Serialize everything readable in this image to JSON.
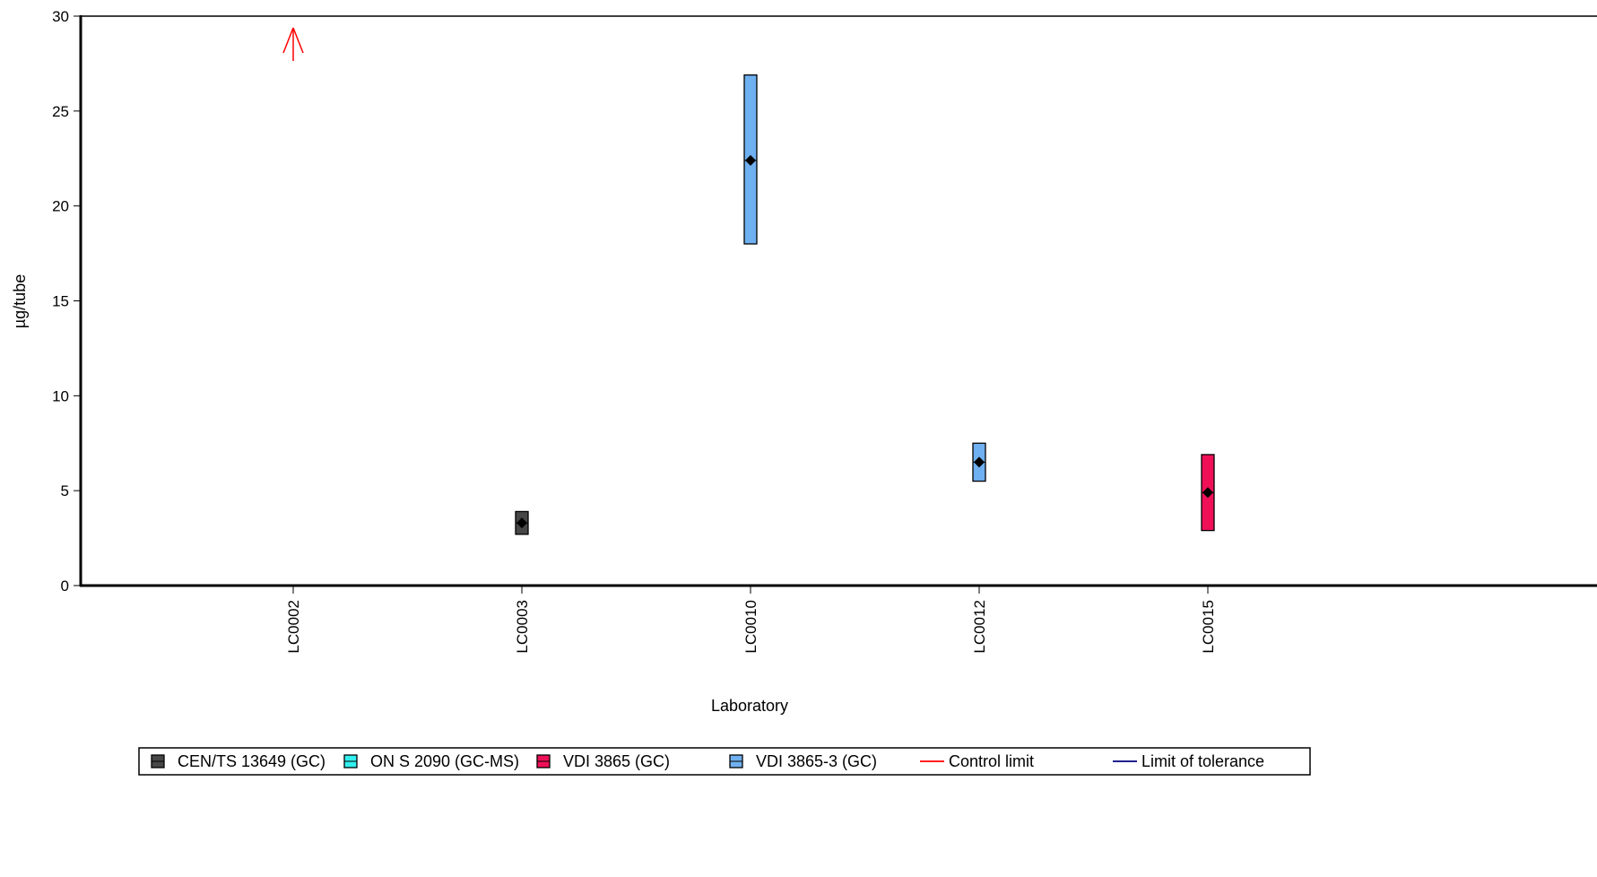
{
  "chart_data": {
    "type": "box",
    "xlabel": "Laboratory",
    "ylabel": "µg/tube",
    "ylim": [
      0,
      30
    ],
    "yticks": [
      0,
      5,
      10,
      15,
      20,
      25,
      30
    ],
    "grid": false,
    "categories": [
      "LC0002",
      "LC0003",
      "LC0010",
      "LC0012",
      "LC0015"
    ],
    "points": [
      {
        "lab": "LC0002",
        "method": "off-scale",
        "mean": null,
        "low": null,
        "high": null,
        "exceeds_axis": true
      },
      {
        "lab": "LC0003",
        "method": "CEN/TS 13649 (GC)",
        "mean": 3.3,
        "low": 2.7,
        "high": 3.9
      },
      {
        "lab": "LC0010",
        "method": "VDI 3865-3 (GC)",
        "mean": 22.4,
        "low": 18.0,
        "high": 26.9
      },
      {
        "lab": "LC0012",
        "method": "VDI 3865-3 (GC)",
        "mean": 6.5,
        "low": 5.5,
        "high": 7.5
      },
      {
        "lab": "LC0015",
        "method": "VDI 3865 (GC)",
        "mean": 4.9,
        "low": 2.9,
        "high": 6.9
      }
    ],
    "legend": {
      "position": "bottom",
      "items": [
        {
          "label": "CEN/TS 13649 (GC)",
          "kind": "box",
          "color": "#474747"
        },
        {
          "label": "ON S 2090 (GC-MS)",
          "kind": "box",
          "color": "#33f0f0"
        },
        {
          "label": "VDI 3865 (GC)",
          "kind": "box",
          "color": "#f01058"
        },
        {
          "label": "VDI 3865-3 (GC)",
          "kind": "box",
          "color": "#6fb0f0"
        },
        {
          "label": "Control limit",
          "kind": "line",
          "color": "#ff0000"
        },
        {
          "label": "Limit of tolerance",
          "kind": "line",
          "color": "#000080"
        }
      ]
    },
    "off_scale_marker_color": "#ff0000"
  }
}
